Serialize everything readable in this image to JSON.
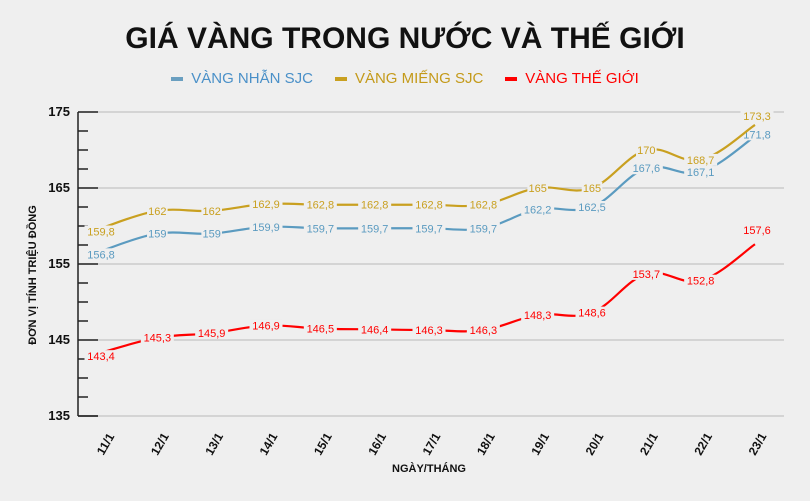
{
  "title": "GIÁ VÀNG TRONG NƯỚC VÀ THẾ GIỚI",
  "legend": [
    {
      "label": "VÀNG NHẪN SJC",
      "color": "#5b9bc0",
      "text_color": "#4a90c8"
    },
    {
      "label": "VÀNG MIẾNG SJC",
      "color": "#c9a020",
      "text_color": "#c49a1a"
    },
    {
      "label": "VÀNG THẾ GIỚI",
      "color": "#ff0000",
      "text_color": "#ff0000"
    }
  ],
  "axis": {
    "ylabel": "ĐƠN VỊ TÍNH TRIỆU ĐỒNG",
    "xlabel": "NGÀY/THÁNG"
  },
  "chart_data": {
    "type": "line",
    "title": "GIÁ VÀNG TRONG NƯỚC VÀ THẾ GIỚI",
    "xlabel": "NGÀY/THÁNG",
    "ylabel": "ĐƠN VỊ TÍNH TRIỆU ĐỒNG",
    "ylim": [
      135,
      175
    ],
    "yticks": [
      135,
      145,
      155,
      165,
      175
    ],
    "grid": true,
    "legend_position": "top",
    "categories": [
      "11/1",
      "12/1",
      "13/1",
      "14/1",
      "15/1",
      "16/1",
      "17/1",
      "18/1",
      "19/1",
      "20/1",
      "21/1",
      "22/1",
      "23/1"
    ],
    "series": [
      {
        "name": "VÀNG NHẪN SJC",
        "color": "#5b9bc0",
        "values": [
          156.8,
          159,
          159,
          159.9,
          159.7,
          159.7,
          159.7,
          159.7,
          162.2,
          162.5,
          167.6,
          167.1,
          171.8
        ],
        "labels": [
          "156,8",
          "159",
          "159",
          "159,9",
          "159,7",
          "159,7",
          "159,7",
          "159,7",
          "162,2",
          "162,5",
          "167,6",
          "167,1",
          "171,8"
        ]
      },
      {
        "name": "VÀNG MIẾNG SJC",
        "color": "#c9a020",
        "values": [
          159.8,
          162,
          162,
          162.9,
          162.8,
          162.8,
          162.8,
          162.8,
          165,
          165,
          170,
          168.7,
          173.3
        ],
        "labels": [
          "159,8",
          "162",
          "162",
          "162,9",
          "162,8",
          "162,8",
          "162,8",
          "162,8",
          "165",
          "165",
          "170",
          "168,7",
          "173,3"
        ]
      },
      {
        "name": "VÀNG THẾ GIỚI",
        "color": "#ff0000",
        "values": [
          143.4,
          145.3,
          145.9,
          146.9,
          146.5,
          146.4,
          146.3,
          146.3,
          148.3,
          148.6,
          153.7,
          152.8,
          157.6
        ],
        "labels": [
          "143,4",
          "145,3",
          "145,9",
          "146,9",
          "146,5",
          "146,4",
          "146,3",
          "146,3",
          "148,3",
          "148,6",
          "153,7",
          "152,8",
          "157,6"
        ]
      }
    ]
  }
}
